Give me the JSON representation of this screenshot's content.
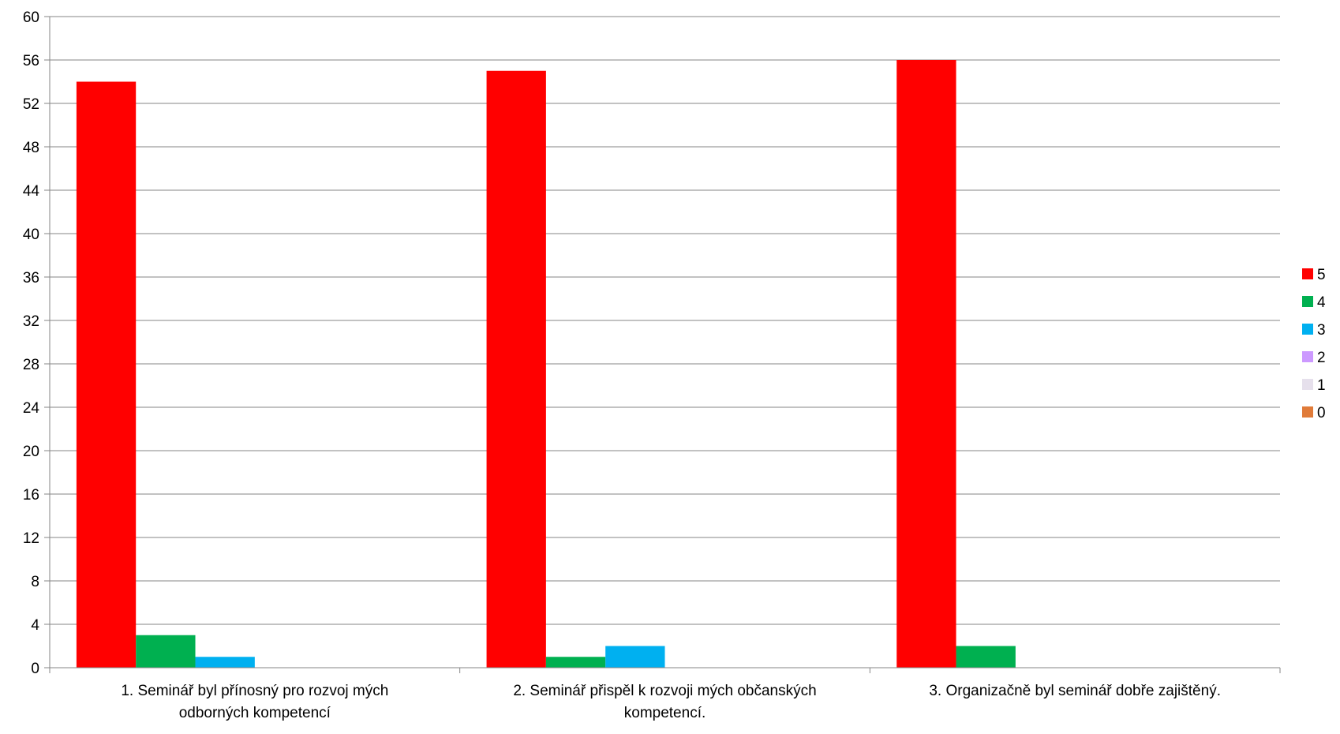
{
  "chart_data": {
    "type": "bar",
    "title": "",
    "xlabel": "",
    "ylabel": "",
    "ylim": [
      0,
      60
    ],
    "yticks": [
      0,
      4,
      8,
      12,
      16,
      20,
      24,
      28,
      32,
      36,
      40,
      44,
      48,
      52,
      56,
      60
    ],
    "grid": true,
    "legend_position": "right",
    "categories": [
      [
        "1. Seminář byl přínosný pro rozvoj mých",
        "odborných kompetencí"
      ],
      [
        "2. Seminář přispěl k rozvoji mých občanských",
        "kompetencí."
      ],
      [
        "3. Organizačně byl seminář dobře zajištěný."
      ]
    ],
    "series": [
      {
        "name": "5",
        "color": "#ff0000",
        "values": [
          54,
          55,
          56
        ]
      },
      {
        "name": "4",
        "color": "#00b050",
        "values": [
          3,
          1,
          2
        ]
      },
      {
        "name": "3",
        "color": "#00b0f0",
        "values": [
          1,
          2,
          0
        ]
      },
      {
        "name": "2",
        "color": "#cc99ff",
        "values": [
          0,
          0,
          0
        ]
      },
      {
        "name": "1",
        "color": "#e6e0ec",
        "values": [
          0,
          0,
          0
        ]
      },
      {
        "name": "0",
        "color": "#e07b39",
        "values": [
          0,
          0,
          0
        ]
      }
    ]
  }
}
